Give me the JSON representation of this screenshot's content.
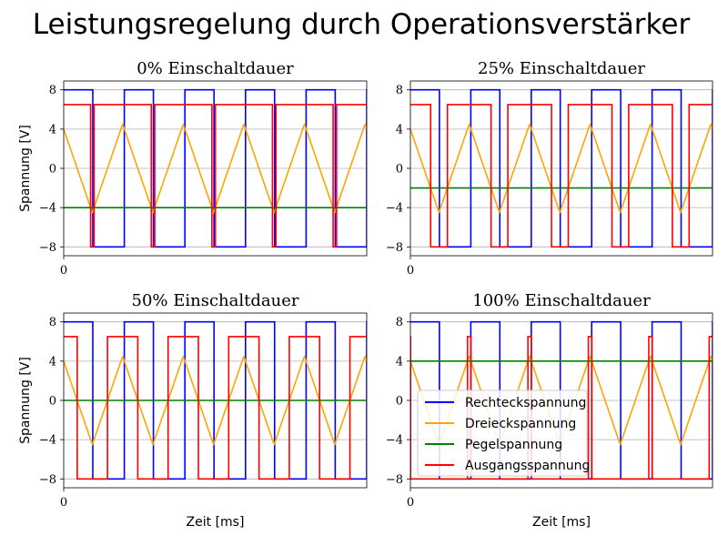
{
  "title": "Leistungsregelung durch Operationsverstärker",
  "colors": {
    "rect": "#0000ff",
    "tri": "#ffa500",
    "level": "#008000",
    "out": "#ff0000",
    "grid": "#b0b0b0"
  },
  "chart_data": [
    {
      "type": "line",
      "title": "0% Einschaltdauer",
      "xlabel": "",
      "ylabel": "Spannung [V]",
      "yticks": [
        "8",
        "4",
        "0",
        "−4",
        "−8"
      ],
      "xtick": "0",
      "ylim": [
        -8.9,
        8.9
      ],
      "xlim": [
        0,
        10
      ],
      "grid": "horizontal",
      "legend": null,
      "rect": {
        "high": 8,
        "low": -8,
        "period": 2,
        "phase": 0
      },
      "tri": {
        "amplitude": 4.5,
        "period": 2,
        "start": 4
      },
      "level": -4,
      "out": {
        "high": 6.5,
        "low": -8
      }
    },
    {
      "type": "line",
      "title": "25% Einschaltdauer",
      "xlabel": "",
      "ylabel": "",
      "yticks": [
        "8",
        "4",
        "0",
        "−4",
        "−8"
      ],
      "xtick": "0",
      "ylim": [
        -8.9,
        8.9
      ],
      "xlim": [
        0,
        10
      ],
      "grid": "horizontal",
      "legend": null,
      "rect": {
        "high": 8,
        "low": -8,
        "period": 2,
        "phase": 0
      },
      "tri": {
        "amplitude": 4.5,
        "period": 2,
        "start": 4
      },
      "level": -2,
      "out": {
        "high": 6.5,
        "low": -8
      }
    },
    {
      "type": "line",
      "title": "50% Einschaltdauer",
      "xlabel": "Zeit [ms]",
      "ylabel": "Spannung [V]",
      "yticks": [
        "8",
        "4",
        "0",
        "−4",
        "−8"
      ],
      "xtick": "0",
      "ylim": [
        -8.9,
        8.9
      ],
      "xlim": [
        0,
        10
      ],
      "grid": "horizontal",
      "legend": null,
      "rect": {
        "high": 8,
        "low": -8,
        "period": 2,
        "phase": 0
      },
      "tri": {
        "amplitude": 4.5,
        "period": 2,
        "start": 4
      },
      "level": 0,
      "out": {
        "high": 6.5,
        "low": -8
      }
    },
    {
      "type": "line",
      "title": "100% Einschaltdauer",
      "xlabel": "Zeit [ms]",
      "ylabel": "",
      "yticks": [
        "8",
        "4",
        "0",
        "−4",
        "−8"
      ],
      "xtick": "0",
      "ylim": [
        -8.9,
        8.9
      ],
      "xlim": [
        0,
        10
      ],
      "grid": "horizontal",
      "legend": "lower-left",
      "rect": {
        "high": 8,
        "low": -8,
        "period": 2,
        "phase": 0
      },
      "tri": {
        "amplitude": 4.5,
        "period": 2,
        "start": 4
      },
      "level": 4,
      "out": {
        "high": 6.5,
        "low": -8
      }
    }
  ],
  "legend": [
    "Rechteckspannung",
    "Dreieckspannung",
    "Pegelspannung",
    "Ausgangsspannung"
  ]
}
